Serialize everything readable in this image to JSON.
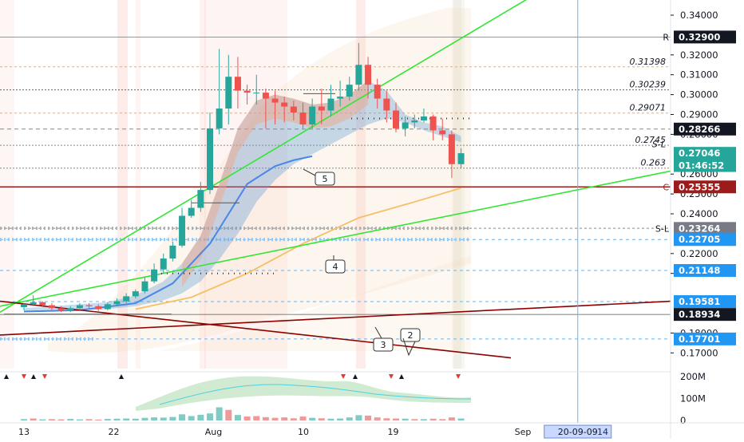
{
  "chart_data": {
    "type": "candlestick",
    "colors": {
      "up": "#26a69a",
      "down": "#ef5350",
      "ribbon_blue": "#5b9bd5",
      "ribbon_red": "#f4a582",
      "trendline_green": "#33e633",
      "trendline_darkred": "#8b0000",
      "ma_orange": "#f5c065",
      "level_red": "#9e1b1b",
      "axis_blue": "#2196f3"
    },
    "y_axis": {
      "ylim": [
        0.1645,
        0.3465
      ],
      "ticks": [
        "0.34000",
        "0.32000",
        "0.31000",
        "0.30000",
        "0.29000",
        "0.28000",
        "0.26000",
        "0.25000",
        "0.24000",
        "0.22000",
        "0.21000",
        "0.18000",
        "0.17000"
      ],
      "tick_values": [
        0.34,
        0.32,
        0.31,
        0.3,
        0.29,
        0.28,
        0.26,
        0.25,
        0.24,
        0.22,
        0.21,
        0.18,
        0.17
      ]
    },
    "x_axis": {
      "labels": [
        "13",
        "22",
        "Aug",
        "10",
        "19",
        "Sep",
        "14"
      ],
      "label_days": [
        0,
        9,
        19,
        28,
        37,
        50,
        58
      ],
      "cursor_label": "20-09-09",
      "cursor_day": 55.5
    },
    "badges": [
      {
        "text": "0.32900",
        "value": 0.329,
        "bg": "#131722",
        "fg": "#ffffff",
        "prefix": "R"
      },
      {
        "text": "0.28266",
        "value": 0.28266,
        "bg": "#131722",
        "fg": "#ffffff",
        "prefix": ""
      },
      {
        "text": "0.27046",
        "value": 0.27046,
        "bg": "#26a69a",
        "fg": "#ffffff",
        "prefix": ""
      },
      {
        "text": "01:46:52",
        "value": 0.2643,
        "bg": "#26a69a",
        "fg": "#ffffff",
        "prefix": ""
      },
      {
        "text": "0.25355",
        "value": 0.25355,
        "bg": "#9e1b1b",
        "fg": "#ffffff",
        "prefix": "C"
      },
      {
        "text": "0.23264",
        "value": 0.23264,
        "bg": "#787b86",
        "fg": "#ffffff",
        "prefix": "S-L"
      },
      {
        "text": "0.22705",
        "value": 0.22705,
        "bg": "#2196f3",
        "fg": "#ffffff",
        "prefix": ""
      },
      {
        "text": "0.21148",
        "value": 0.21148,
        "bg": "#2196f3",
        "fg": "#ffffff",
        "prefix": ""
      },
      {
        "text": "0.19581",
        "value": 0.19581,
        "bg": "#2196f3",
        "fg": "#ffffff",
        "prefix": ""
      },
      {
        "text": "0.18934",
        "value": 0.18934,
        "bg": "#131722",
        "fg": "#ffffff",
        "prefix": ""
      },
      {
        "text": "0.17701",
        "value": 0.17701,
        "bg": "#2196f3",
        "fg": "#ffffff",
        "prefix": ""
      }
    ],
    "fib_labels": [
      {
        "text": "0.31398",
        "value": 0.31398
      },
      {
        "text": "0.30239",
        "value": 0.30239
      },
      {
        "text": "0.29071",
        "value": 0.29071
      },
      {
        "text": "0.2745",
        "value": 0.2745
      },
      {
        "text": "S-L",
        "value": 0.2723
      },
      {
        "text": "0.263",
        "value": 0.263
      }
    ],
    "wave_labels": [
      "5",
      "4",
      "3",
      "2"
    ],
    "volume_axis": {
      "ticks": [
        "200M",
        "100M",
        "0"
      ],
      "tick_values": [
        200,
        100,
        0
      ]
    },
    "candles": [
      [
        0,
        0.193,
        0.1945,
        0.1915,
        0.195
      ],
      [
        1,
        0.1945,
        0.1955,
        0.1935,
        0.199
      ],
      [
        2,
        0.1955,
        0.194,
        0.193,
        0.196
      ],
      [
        3,
        0.194,
        0.1925,
        0.1915,
        0.195
      ],
      [
        4,
        0.1925,
        0.1915,
        0.1905,
        0.1935
      ],
      [
        5,
        0.1915,
        0.1925,
        0.1905,
        0.1935
      ],
      [
        6,
        0.1925,
        0.194,
        0.1915,
        0.195
      ],
      [
        7,
        0.194,
        0.1935,
        0.1925,
        0.195
      ],
      [
        8,
        0.1935,
        0.192,
        0.191,
        0.1945
      ],
      [
        9,
        0.192,
        0.1945,
        0.1915,
        0.1955
      ],
      [
        10,
        0.1945,
        0.196,
        0.1935,
        0.1975
      ],
      [
        11,
        0.196,
        0.1985,
        0.195,
        0.2
      ],
      [
        12,
        0.1985,
        0.201,
        0.1975,
        0.202
      ],
      [
        13,
        0.201,
        0.206,
        0.2,
        0.208
      ],
      [
        14,
        0.206,
        0.212,
        0.205,
        0.215
      ],
      [
        15,
        0.212,
        0.2175,
        0.21,
        0.22
      ],
      [
        16,
        0.2175,
        0.224,
        0.216,
        0.226
      ],
      [
        17,
        0.224,
        0.239,
        0.223,
        0.243
      ],
      [
        18,
        0.239,
        0.243,
        0.238,
        0.247
      ],
      [
        19,
        0.243,
        0.252,
        0.241,
        0.256
      ],
      [
        20,
        0.252,
        0.283,
        0.25,
        0.291
      ],
      [
        21,
        0.283,
        0.293,
        0.28,
        0.323
      ],
      [
        22,
        0.293,
        0.309,
        0.285,
        0.32
      ],
      [
        23,
        0.309,
        0.302,
        0.293,
        0.319
      ],
      [
        24,
        0.302,
        0.301,
        0.295,
        0.305
      ],
      [
        25,
        0.301,
        0.301,
        0.295,
        0.31
      ],
      [
        26,
        0.301,
        0.298,
        0.283,
        0.303
      ],
      [
        27,
        0.298,
        0.296,
        0.285,
        0.302
      ],
      [
        28,
        0.296,
        0.294,
        0.286,
        0.299
      ],
      [
        29,
        0.294,
        0.291,
        0.287,
        0.297
      ],
      [
        30,
        0.291,
        0.285,
        0.283,
        0.296
      ],
      [
        31,
        0.285,
        0.294,
        0.283,
        0.298
      ],
      [
        32,
        0.294,
        0.292,
        0.285,
        0.303
      ],
      [
        33,
        0.292,
        0.298,
        0.289,
        0.305
      ],
      [
        34,
        0.298,
        0.299,
        0.294,
        0.307
      ],
      [
        35,
        0.299,
        0.305,
        0.297,
        0.309
      ],
      [
        36,
        0.305,
        0.315,
        0.302,
        0.326
      ],
      [
        37,
        0.315,
        0.305,
        0.298,
        0.319
      ],
      [
        38,
        0.305,
        0.298,
        0.293,
        0.308
      ],
      [
        39,
        0.298,
        0.292,
        0.286,
        0.302
      ],
      [
        40,
        0.292,
        0.283,
        0.281,
        0.296
      ],
      [
        41,
        0.283,
        0.286,
        0.279,
        0.289
      ],
      [
        42,
        0.286,
        0.287,
        0.283,
        0.29
      ],
      [
        43,
        0.287,
        0.289,
        0.286,
        0.293
      ],
      [
        44,
        0.289,
        0.282,
        0.277,
        0.29
      ],
      [
        45,
        0.282,
        0.28,
        0.277,
        0.288
      ],
      [
        46,
        0.28,
        0.265,
        0.258,
        0.282
      ],
      [
        47,
        0.265,
        0.2705,
        0.263,
        0.273
      ]
    ],
    "volumes": [
      [
        0,
        6,
        "up"
      ],
      [
        1,
        9,
        "down"
      ],
      [
        2,
        5,
        "up"
      ],
      [
        3,
        6,
        "down"
      ],
      [
        4,
        5,
        "down"
      ],
      [
        5,
        7,
        "up"
      ],
      [
        6,
        5,
        "up"
      ],
      [
        7,
        6,
        "down"
      ],
      [
        8,
        4,
        "down"
      ],
      [
        9,
        7,
        "up"
      ],
      [
        10,
        8,
        "up"
      ],
      [
        11,
        9,
        "up"
      ],
      [
        12,
        8,
        "up"
      ],
      [
        13,
        12,
        "up"
      ],
      [
        14,
        14,
        "up"
      ],
      [
        15,
        13,
        "up"
      ],
      [
        16,
        16,
        "up"
      ],
      [
        17,
        28,
        "up"
      ],
      [
        18,
        20,
        "up"
      ],
      [
        19,
        26,
        "up"
      ],
      [
        20,
        32,
        "up"
      ],
      [
        21,
        60,
        "up"
      ],
      [
        22,
        48,
        "down"
      ],
      [
        23,
        25,
        "up"
      ],
      [
        24,
        18,
        "down"
      ],
      [
        25,
        20,
        "down"
      ],
      [
        26,
        15,
        "down"
      ],
      [
        27,
        12,
        "down"
      ],
      [
        28,
        14,
        "down"
      ],
      [
        29,
        10,
        "down"
      ],
      [
        30,
        18,
        "down"
      ],
      [
        31,
        12,
        "up"
      ],
      [
        32,
        10,
        "down"
      ],
      [
        33,
        8,
        "up"
      ],
      [
        34,
        9,
        "up"
      ],
      [
        35,
        14,
        "up"
      ],
      [
        36,
        24,
        "up"
      ],
      [
        37,
        22,
        "down"
      ],
      [
        38,
        14,
        "down"
      ],
      [
        39,
        10,
        "down"
      ],
      [
        40,
        9,
        "down"
      ],
      [
        41,
        8,
        "up"
      ],
      [
        42,
        6,
        "down"
      ],
      [
        43,
        6,
        "up"
      ],
      [
        44,
        8,
        "down"
      ],
      [
        45,
        6,
        "down"
      ],
      [
        46,
        14,
        "down"
      ],
      [
        47,
        9,
        "up"
      ]
    ]
  }
}
